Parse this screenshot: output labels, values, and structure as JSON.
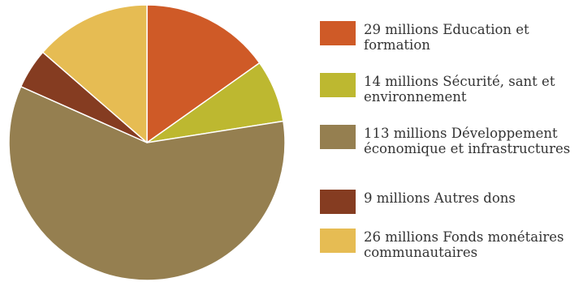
{
  "chart_data": {
    "type": "pie",
    "slices": [
      {
        "value": 29,
        "label": "29 millions Education et formation",
        "color": "#cf5a27"
      },
      {
        "value": 14,
        "label": "14 millions Sécurité, sant et environnement",
        "color": "#bdb830"
      },
      {
        "value": 113,
        "label": "113 millions Développement économique et infrastructures",
        "color": "#957f50"
      },
      {
        "value": 9,
        "label": "9 millions Autres dons",
        "color": "#853c21"
      },
      {
        "value": 26,
        "label": "26 millions Fonds monétaires communautaires",
        "color": "#e6bc53"
      }
    ],
    "start": "12 o'clock",
    "direction": "clockwise",
    "legend_position": "right"
  }
}
